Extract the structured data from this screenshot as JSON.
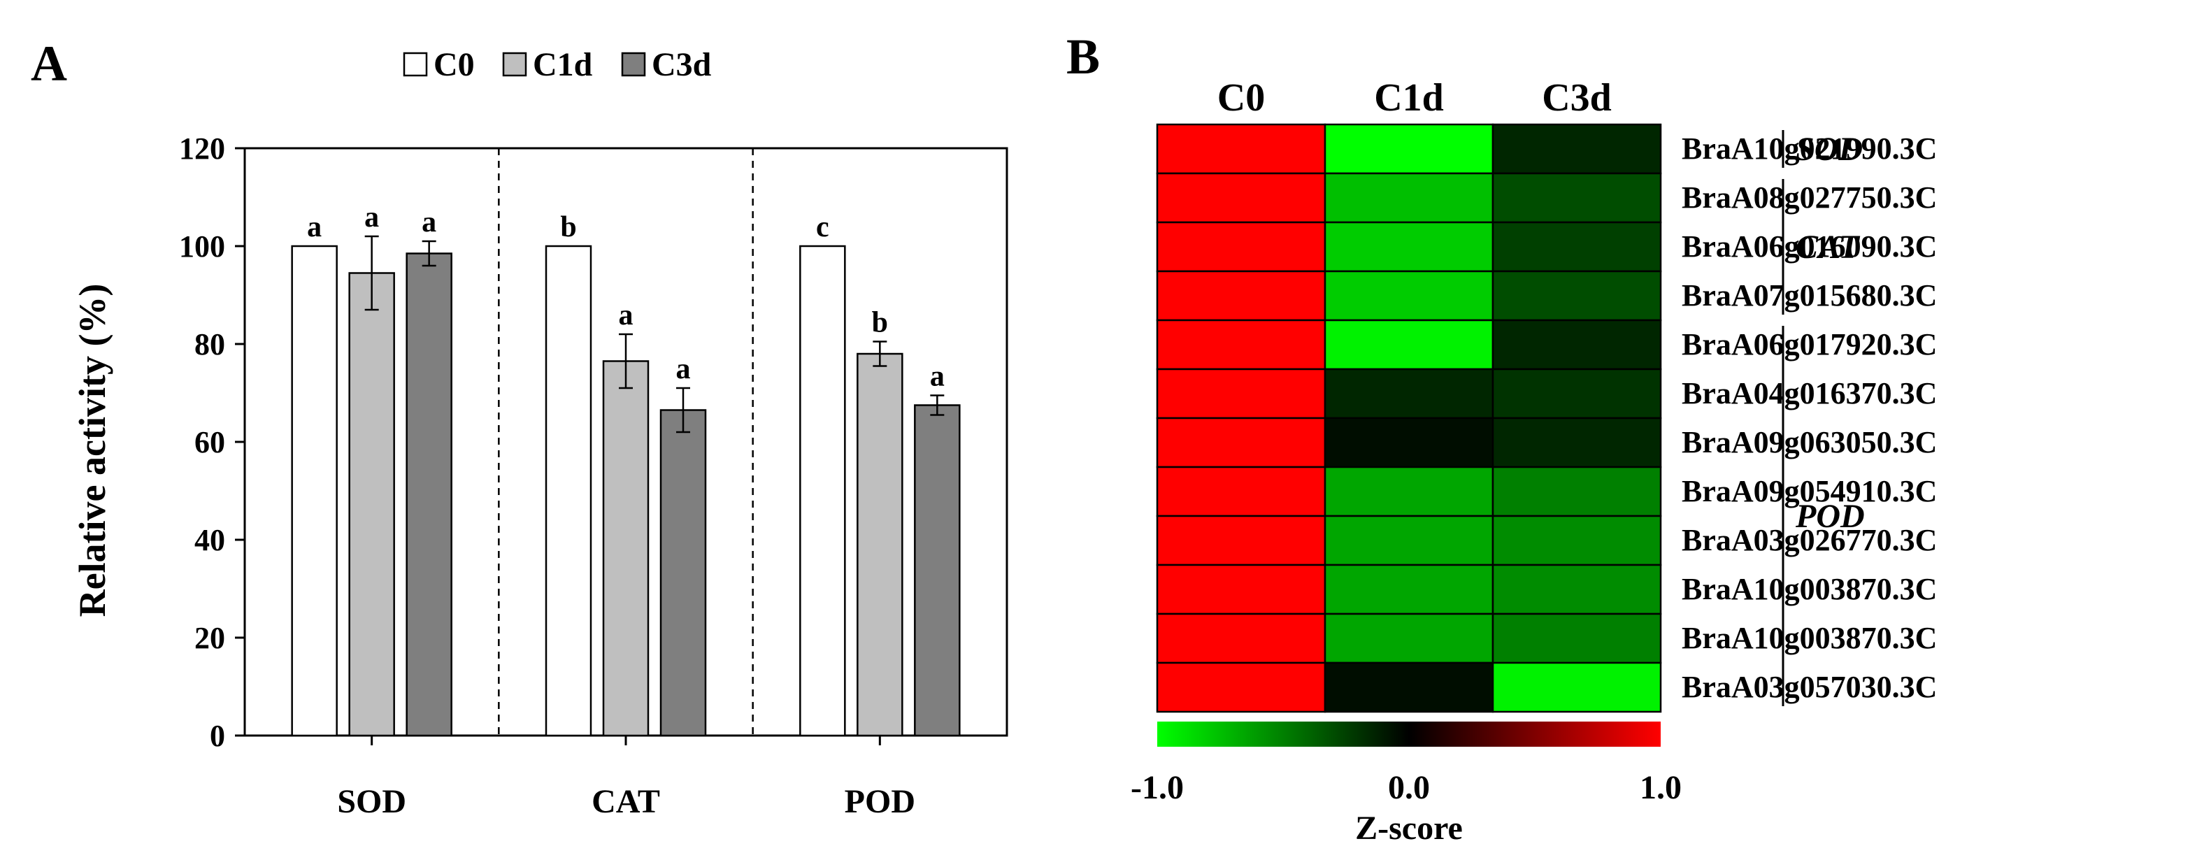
{
  "colors": {
    "c0_fill": "#ffffff",
    "c1d_fill": "#bfbfbf",
    "c3d_fill": "#7f7f7f",
    "heat_low": "#00ff00",
    "heat_mid": "#000000",
    "heat_high": "#ff0000"
  },
  "chart_data": [
    {
      "type": "bar",
      "panel_label": "A",
      "title": "",
      "xlabel": "",
      "ylabel": "Relative activity (%)",
      "ylim": [
        0,
        120
      ],
      "yticks": [
        0,
        20,
        40,
        60,
        80,
        100,
        120
      ],
      "categories": [
        "SOD",
        "CAT",
        "POD"
      ],
      "legend": {
        "position": "top",
        "entries": [
          "C0",
          "C1d",
          "C3d"
        ]
      },
      "series": [
        {
          "name": "C0",
          "values": [
            100,
            100,
            100
          ],
          "errors": [
            0,
            0,
            0
          ],
          "letters": [
            "a",
            "b",
            "c"
          ]
        },
        {
          "name": "C1d",
          "values": [
            94.5,
            76.5,
            78
          ],
          "errors": [
            7.5,
            5.5,
            2.5
          ],
          "letters": [
            "a",
            "a",
            "b"
          ]
        },
        {
          "name": "C3d",
          "values": [
            98.5,
            66.5,
            67.5
          ],
          "errors": [
            2.5,
            4.5,
            2
          ],
          "letters": [
            "a",
            "a",
            "a"
          ]
        }
      ],
      "grid": false,
      "group_separators": "dashed"
    },
    {
      "type": "heatmap",
      "panel_label": "B",
      "columns": [
        "C0",
        "C1d",
        "C3d"
      ],
      "rows": [
        "BraA10g021990.3C",
        "BraA08g027750.3C",
        "BraA06g016090.3C",
        "BraA07g015680.3C",
        "BraA06g017920.3C",
        "BraA04g016370.3C",
        "BraA09g063050.3C",
        "BraA09g054910.3C",
        "BraA03g026770.3C",
        "BraA10g003870.3C",
        "BraA10g003870.3C",
        "BraA03g057030.3C"
      ],
      "values": [
        [
          1.0,
          -1.0,
          -0.15
        ],
        [
          1.0,
          -0.75,
          -0.3
        ],
        [
          1.0,
          -0.8,
          -0.25
        ],
        [
          1.0,
          -0.8,
          -0.3
        ],
        [
          1.0,
          -0.95,
          -0.15
        ],
        [
          1.0,
          -0.15,
          -0.2
        ],
        [
          1.0,
          -0.05,
          -0.15
        ],
        [
          1.0,
          -0.65,
          -0.5
        ],
        [
          1.0,
          -0.65,
          -0.55
        ],
        [
          1.0,
          -0.65,
          -0.55
        ],
        [
          1.0,
          -0.65,
          -0.5
        ],
        [
          1.0,
          -0.05,
          -0.95
        ]
      ],
      "groups": [
        {
          "label": "SOD",
          "rows": [
            0,
            0
          ]
        },
        {
          "label": "CAT",
          "rows": [
            1,
            3
          ]
        },
        {
          "label": "POD",
          "rows": [
            4,
            11
          ]
        }
      ],
      "colorbar": {
        "min": -1.0,
        "max": 1.0,
        "ticks": [
          "-1.0",
          "0.0",
          "1.0"
        ],
        "label": "Z-score"
      }
    }
  ]
}
